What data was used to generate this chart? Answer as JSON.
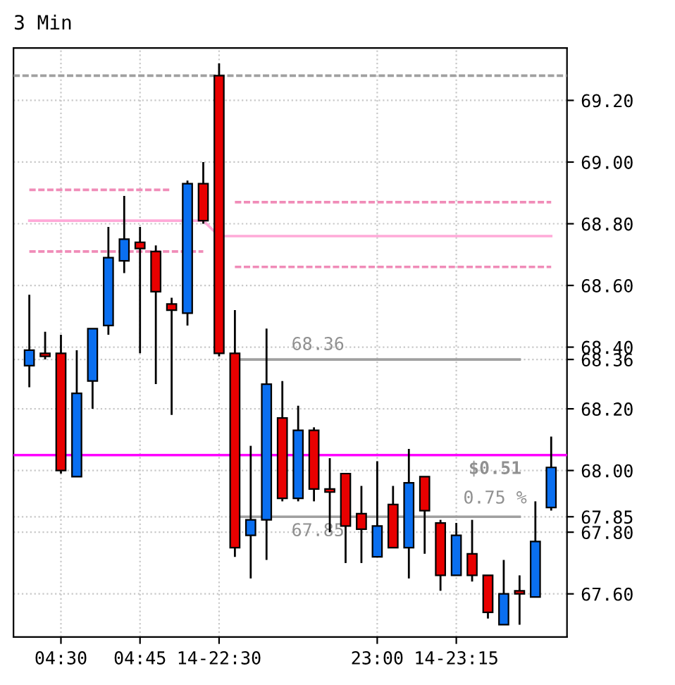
{
  "chart_data": {
    "type": "candlestick",
    "title": "3 Min",
    "categories": [
      null,
      null,
      "04:30",
      null,
      null,
      null,
      null,
      "04:45",
      null,
      null,
      null,
      null,
      "14-22:30",
      null,
      null,
      null,
      null,
      null,
      null,
      null,
      null,
      null,
      "23:00",
      null,
      null,
      null,
      null,
      "14-23:15",
      null,
      null,
      null,
      null,
      null,
      null
    ],
    "ohlc": [
      [
        68.34,
        68.57,
        68.27,
        68.39
      ],
      [
        68.38,
        68.45,
        68.36,
        68.37
      ],
      [
        68.38,
        68.44,
        67.99,
        68.0
      ],
      [
        67.98,
        68.39,
        67.98,
        68.25
      ],
      [
        68.29,
        68.46,
        68.2,
        68.46
      ],
      [
        68.47,
        68.79,
        68.44,
        68.69
      ],
      [
        68.68,
        68.89,
        68.64,
        68.75
      ],
      [
        68.74,
        68.79,
        68.38,
        68.72
      ],
      [
        68.71,
        68.73,
        68.28,
        68.58
      ],
      [
        68.54,
        68.56,
        68.18,
        68.52
      ],
      [
        68.51,
        68.94,
        68.47,
        68.93
      ],
      [
        68.93,
        69.0,
        68.8,
        68.81
      ],
      [
        69.28,
        69.32,
        68.37,
        68.38
      ],
      [
        68.38,
        68.52,
        67.72,
        67.75
      ],
      [
        67.79,
        68.08,
        67.65,
        67.84
      ],
      [
        67.84,
        68.46,
        67.71,
        68.28
      ],
      [
        68.17,
        68.29,
        67.9,
        67.91
      ],
      [
        67.91,
        68.21,
        67.9,
        68.13
      ],
      [
        68.13,
        68.14,
        67.9,
        67.94
      ],
      [
        67.94,
        68.04,
        67.8,
        67.93
      ],
      [
        67.99,
        67.99,
        67.7,
        67.82
      ],
      [
        67.86,
        67.95,
        67.7,
        67.81
      ],
      [
        67.72,
        68.03,
        67.72,
        67.82
      ],
      [
        67.89,
        67.95,
        67.75,
        67.75
      ],
      [
        67.75,
        68.07,
        67.65,
        67.96
      ],
      [
        67.98,
        67.98,
        67.73,
        67.87
      ],
      [
        67.83,
        67.84,
        67.61,
        67.66
      ],
      [
        67.66,
        67.83,
        67.66,
        67.79
      ],
      [
        67.73,
        67.84,
        67.64,
        67.66
      ],
      [
        67.66,
        67.66,
        67.52,
        67.54
      ],
      [
        67.5,
        67.71,
        67.5,
        67.6
      ],
      [
        67.61,
        67.66,
        67.5,
        67.6
      ],
      [
        67.59,
        67.9,
        67.59,
        67.77
      ],
      [
        67.88,
        68.11,
        67.87,
        68.01
      ]
    ],
    "colors": [
      "#0a6ff0",
      "#e80000",
      "#e80000",
      "#0a6ff0",
      "#0a6ff0",
      "#0a6ff0",
      "#0a6ff0",
      "#e80000",
      "#e80000",
      "#e80000",
      "#0a6ff0",
      "#e80000",
      "#e80000",
      "#e80000",
      "#0a6ff0",
      "#0a6ff0",
      "#e80000",
      "#0a6ff0",
      "#e80000",
      "#e80000",
      "#e80000",
      "#e80000",
      "#0a6ff0",
      "#e80000",
      "#0a6ff0",
      "#e80000",
      "#e80000",
      "#0a6ff0",
      "#e80000",
      "#e80000",
      "#0a6ff0",
      "#e80000",
      "#0a6ff0",
      "#0a6ff0"
    ],
    "series": [
      {
        "type": "line",
        "color": "#f08cb8",
        "line_style": "dashed",
        "values": [
          68.91,
          68.91,
          68.91,
          68.91,
          68.91,
          68.91,
          68.91,
          68.91,
          68.91,
          68.91,
          null,
          null,
          null,
          null,
          null,
          null,
          null,
          null,
          null,
          null,
          null,
          null,
          null,
          null,
          null,
          null,
          null,
          null,
          null,
          null,
          null,
          null,
          null,
          null
        ]
      },
      {
        "type": "line",
        "color": "#f08cb8",
        "line_style": "dashed",
        "values": [
          68.71,
          68.71,
          68.71,
          68.71,
          68.71,
          68.71,
          68.71,
          68.71,
          null,
          68.71,
          68.71,
          68.71,
          null,
          null,
          null,
          null,
          null,
          null,
          null,
          null,
          null,
          null,
          null,
          null,
          null,
          null,
          null,
          null,
          null,
          null,
          null,
          null,
          null,
          null
        ]
      },
      {
        "type": "line",
        "color": "#f08cb8",
        "line_style": "dashed",
        "values": [
          null,
          null,
          null,
          null,
          null,
          null,
          null,
          null,
          null,
          null,
          null,
          null,
          null,
          68.87,
          68.87,
          68.87,
          68.87,
          68.87,
          68.87,
          68.87,
          68.87,
          68.87,
          68.87,
          68.87,
          68.87,
          68.87,
          68.87,
          68.87,
          68.87,
          68.87,
          68.87,
          68.87,
          68.87,
          68.87
        ]
      },
      {
        "type": "line",
        "color": "#f08cb8",
        "line_style": "dashed",
        "values": [
          null,
          null,
          null,
          null,
          null,
          null,
          null,
          null,
          null,
          null,
          null,
          null,
          null,
          68.66,
          68.66,
          68.66,
          68.66,
          68.66,
          68.66,
          68.66,
          68.66,
          68.66,
          68.66,
          68.66,
          68.66,
          68.66,
          68.66,
          68.66,
          68.66,
          68.66,
          68.66,
          68.66,
          68.66,
          68.66
        ]
      },
      {
        "type": "line",
        "color": "#ffaad8",
        "line_style": "solid",
        "values": [
          68.81,
          68.81,
          68.81,
          68.81,
          68.81,
          68.81,
          68.81,
          68.81,
          68.81,
          68.81,
          68.81,
          68.81,
          68.76,
          68.76,
          68.76,
          68.76,
          68.76,
          68.76,
          68.76,
          68.76,
          68.76,
          68.76,
          68.76,
          68.76,
          68.76,
          68.76,
          68.76,
          68.76,
          68.76,
          68.76,
          68.76,
          68.76,
          68.76,
          68.76
        ]
      },
      {
        "type": "line",
        "color": "#a0a0a0",
        "line_style": "solid",
        "values": [
          null,
          null,
          null,
          null,
          null,
          null,
          null,
          null,
          null,
          null,
          null,
          null,
          null,
          68.36,
          68.36,
          68.36,
          68.36,
          68.36,
          68.36,
          68.36,
          68.36,
          68.36,
          68.36,
          68.36,
          68.36,
          68.36,
          68.36,
          68.36,
          68.36,
          68.36,
          68.36,
          68.36,
          null,
          null
        ]
      },
      {
        "type": "line",
        "color": "#a0a0a0",
        "line_style": "solid",
        "values": [
          null,
          null,
          null,
          null,
          null,
          null,
          null,
          null,
          null,
          null,
          null,
          null,
          null,
          67.85,
          67.85,
          67.85,
          67.85,
          67.85,
          67.85,
          67.85,
          67.85,
          67.85,
          67.85,
          67.85,
          67.85,
          67.85,
          67.85,
          67.85,
          67.85,
          67.85,
          67.85,
          67.85,
          null,
          null
        ]
      }
    ],
    "ref_lines": [
      {
        "axis": "y",
        "value": 69.28,
        "color": "#a0a0a0",
        "line_style": "dashed"
      },
      {
        "axis": "y",
        "value": 68.05,
        "color": "#ff00ff",
        "line_style": "solid"
      }
    ],
    "annotations": [
      {
        "text": "68.36",
        "y": 68.36
      },
      {
        "text": "67.85",
        "y": 67.85
      },
      "$0.51",
      "0.75 %"
    ],
    "ylim": [
      67.46,
      69.37
    ],
    "yticks": [
      {
        "value": 67.6,
        "label": "67.60"
      },
      {
        "value": 67.8,
        "label": "67.80"
      },
      {
        "value": 67.85,
        "label": "67.85"
      },
      {
        "value": 68.0,
        "label": "68.00"
      },
      {
        "value": 68.2,
        "label": "68.20"
      },
      {
        "value": 68.36,
        "label": "68.36"
      },
      {
        "value": 68.4,
        "label": "68.40"
      },
      {
        "value": 68.6,
        "label": "68.60"
      },
      {
        "value": 68.8,
        "label": "68.80"
      },
      {
        "value": 69.0,
        "label": "69.00"
      },
      {
        "value": 69.2,
        "label": "69.20"
      }
    ],
    "grid": true
  }
}
